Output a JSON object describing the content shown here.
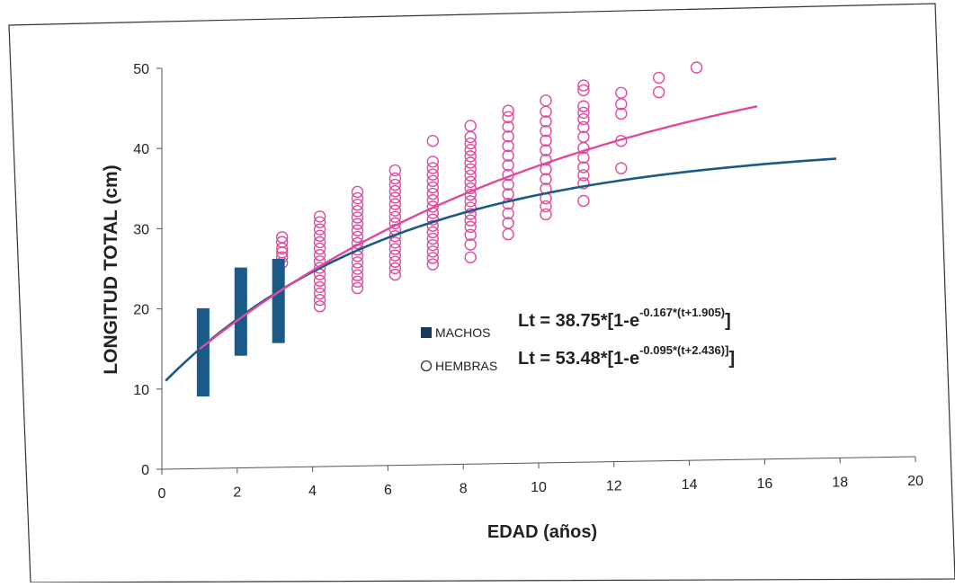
{
  "chart_data": {
    "type": "scatter",
    "title": "",
    "xlabel": "EDAD (años)",
    "ylabel": "LONGITUD TOTAL (cm)",
    "xlim": [
      0,
      20
    ],
    "ylim": [
      0,
      50
    ],
    "x_ticks": [
      "0",
      "2",
      "4",
      "6",
      "8",
      "10",
      "12",
      "14",
      "16",
      "18",
      "20"
    ],
    "y_ticks": [
      "0",
      "10",
      "20",
      "30",
      "40",
      "50"
    ],
    "grid": false,
    "legend_position": "center-right",
    "legend": {
      "machos": {
        "label": "MACHOS",
        "equation_main": "Lt = 38.75*[1-e",
        "equation_exp": "-0.167*(t+1.905)",
        "equation_close": "]"
      },
      "hembras": {
        "label": "HEMBRAS",
        "equation_main": "Lt = 53.48*[1-e",
        "equation_exp": "-0.095*(t+2.436)]",
        "equation_close": "]"
      }
    },
    "colors": {
      "machos": "#1b5a87",
      "hembras": "#e0499e",
      "axis": "#555555"
    },
    "series": [
      {
        "name": "MACHOS",
        "kind": "range_bar",
        "ranges": [
          {
            "age": 1,
            "min": 9,
            "max": 20
          },
          {
            "age": 2,
            "min": 14,
            "max": 25
          },
          {
            "age": 3,
            "min": 15.5,
            "max": 26
          }
        ],
        "curve": {
          "Linf": 38.75,
          "k": 0.167,
          "t0": -1.905,
          "x_range": [
            0.1,
            17.9
          ]
        }
      },
      {
        "name": "HEMBRAS",
        "kind": "scatter",
        "points": [
          [
            3,
            25.5
          ],
          [
            3,
            26.2
          ],
          [
            3,
            26.8
          ],
          [
            3,
            27.3
          ],
          [
            3,
            28.1
          ],
          [
            3,
            28.7
          ],
          [
            4,
            20
          ],
          [
            4,
            20.8
          ],
          [
            4,
            21.6
          ],
          [
            4,
            22.4
          ],
          [
            4,
            23.2
          ],
          [
            4,
            24
          ],
          [
            4,
            24.8
          ],
          [
            4,
            25.6
          ],
          [
            4,
            26.4
          ],
          [
            4,
            27.2
          ],
          [
            4,
            28
          ],
          [
            4,
            28.8
          ],
          [
            4,
            29.6
          ],
          [
            4,
            30.5
          ],
          [
            4,
            31.2
          ],
          [
            5,
            22.2
          ],
          [
            5,
            23
          ],
          [
            5,
            23.8
          ],
          [
            5,
            24.6
          ],
          [
            5,
            25.4
          ],
          [
            5,
            26.2
          ],
          [
            5,
            27
          ],
          [
            5,
            27.8
          ],
          [
            5,
            28.6
          ],
          [
            5,
            29.4
          ],
          [
            5,
            30.2
          ],
          [
            5,
            31
          ],
          [
            5,
            31.8
          ],
          [
            5,
            32.6
          ],
          [
            5,
            33.4
          ],
          [
            5,
            34.2
          ],
          [
            6,
            23.8
          ],
          [
            6,
            24.6
          ],
          [
            6,
            25.4
          ],
          [
            6,
            26.2
          ],
          [
            6,
            27
          ],
          [
            6,
            27.8
          ],
          [
            6,
            28.6
          ],
          [
            6,
            29.4
          ],
          [
            6,
            30.2
          ],
          [
            6,
            31
          ],
          [
            6,
            31.8
          ],
          [
            6,
            32.6
          ],
          [
            6,
            33.4
          ],
          [
            6,
            34.2
          ],
          [
            6,
            35
          ],
          [
            6,
            35.8
          ],
          [
            6,
            36.8
          ],
          [
            7,
            25
          ],
          [
            7,
            25.8
          ],
          [
            7,
            26.6
          ],
          [
            7,
            27.4
          ],
          [
            7,
            28.2
          ],
          [
            7,
            29
          ],
          [
            7,
            29.8
          ],
          [
            7,
            30.6
          ],
          [
            7,
            31.4
          ],
          [
            7,
            32.2
          ],
          [
            7,
            33
          ],
          [
            7,
            33.8
          ],
          [
            7,
            34.6
          ],
          [
            7,
            35.4
          ],
          [
            7,
            36.2
          ],
          [
            7,
            37
          ],
          [
            7,
            37.8
          ],
          [
            7,
            40.4
          ],
          [
            8,
            25.8
          ],
          [
            8,
            27.4
          ],
          [
            8,
            28.6
          ],
          [
            8,
            29.6
          ],
          [
            8,
            30.4
          ],
          [
            8,
            31.2
          ],
          [
            8,
            32
          ],
          [
            8,
            32.8
          ],
          [
            8,
            33.6
          ],
          [
            8,
            34.4
          ],
          [
            8,
            35.2
          ],
          [
            8,
            36
          ],
          [
            8,
            36.8
          ],
          [
            8,
            37.6
          ],
          [
            8,
            38.4
          ],
          [
            8,
            39.2
          ],
          [
            8,
            40
          ],
          [
            8,
            40.8
          ],
          [
            8,
            42.2
          ],
          [
            9,
            28.6
          ],
          [
            9,
            30
          ],
          [
            9,
            31.2
          ],
          [
            9,
            32.4
          ],
          [
            9,
            33.6
          ],
          [
            9,
            34.8
          ],
          [
            9,
            36
          ],
          [
            9,
            37.2
          ],
          [
            9,
            38.4
          ],
          [
            9,
            39.6
          ],
          [
            9,
            40.8
          ],
          [
            9,
            42
          ],
          [
            9,
            43.2
          ],
          [
            9,
            44
          ],
          [
            10,
            31
          ],
          [
            10,
            32
          ],
          [
            10,
            33
          ],
          [
            10,
            34.2
          ],
          [
            10,
            35.4
          ],
          [
            10,
            36.6
          ],
          [
            10,
            37.8
          ],
          [
            10,
            39
          ],
          [
            10,
            40.2
          ],
          [
            10,
            41.4
          ],
          [
            10,
            42.6
          ],
          [
            10,
            43.8
          ],
          [
            10,
            45.2
          ],
          [
            11,
            32.6
          ],
          [
            11,
            34.8
          ],
          [
            11,
            35.8
          ],
          [
            11,
            36.8
          ],
          [
            11,
            38
          ],
          [
            11,
            39.2
          ],
          [
            11,
            40.6
          ],
          [
            11,
            41.8
          ],
          [
            11,
            42.8
          ],
          [
            11,
            43.6
          ],
          [
            11,
            44.4
          ],
          [
            11,
            46.4
          ],
          [
            11,
            47
          ],
          [
            12,
            36.6
          ],
          [
            12,
            40
          ],
          [
            12,
            43.4
          ],
          [
            12,
            44.6
          ],
          [
            12,
            46
          ],
          [
            13,
            46
          ],
          [
            13,
            47.8
          ],
          [
            14,
            49
          ]
        ],
        "curve": {
          "Linf": 53.48,
          "k": 0.095,
          "t0": -2.436,
          "x_range": [
            1,
            15.8
          ]
        }
      }
    ]
  }
}
